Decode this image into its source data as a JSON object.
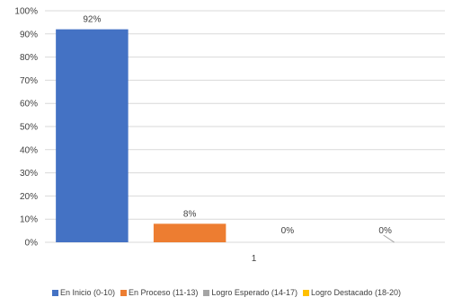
{
  "chart_data": {
    "type": "bar",
    "categories": [
      "1"
    ],
    "series": [
      {
        "name": "En Inicio (0-10)",
        "values": [
          92
        ],
        "label": "92%",
        "color": "#4472C4"
      },
      {
        "name": "En Proceso (11-13)",
        "values": [
          8
        ],
        "label": "8%",
        "color": "#ED7D31"
      },
      {
        "name": "Logro Esperado (14-17)",
        "values": [
          0
        ],
        "label": "0%",
        "color": "#A5A5A5"
      },
      {
        "name": "Logro Destacado (18-20)",
        "values": [
          0
        ],
        "label": "0%",
        "color": "#FFC000"
      }
    ],
    "y_ticks": [
      "0%",
      "10%",
      "20%",
      "30%",
      "40%",
      "50%",
      "60%",
      "70%",
      "80%",
      "90%",
      "100%"
    ],
    "ylim": [
      0,
      100
    ],
    "grid": true,
    "legend_position": "bottom"
  }
}
